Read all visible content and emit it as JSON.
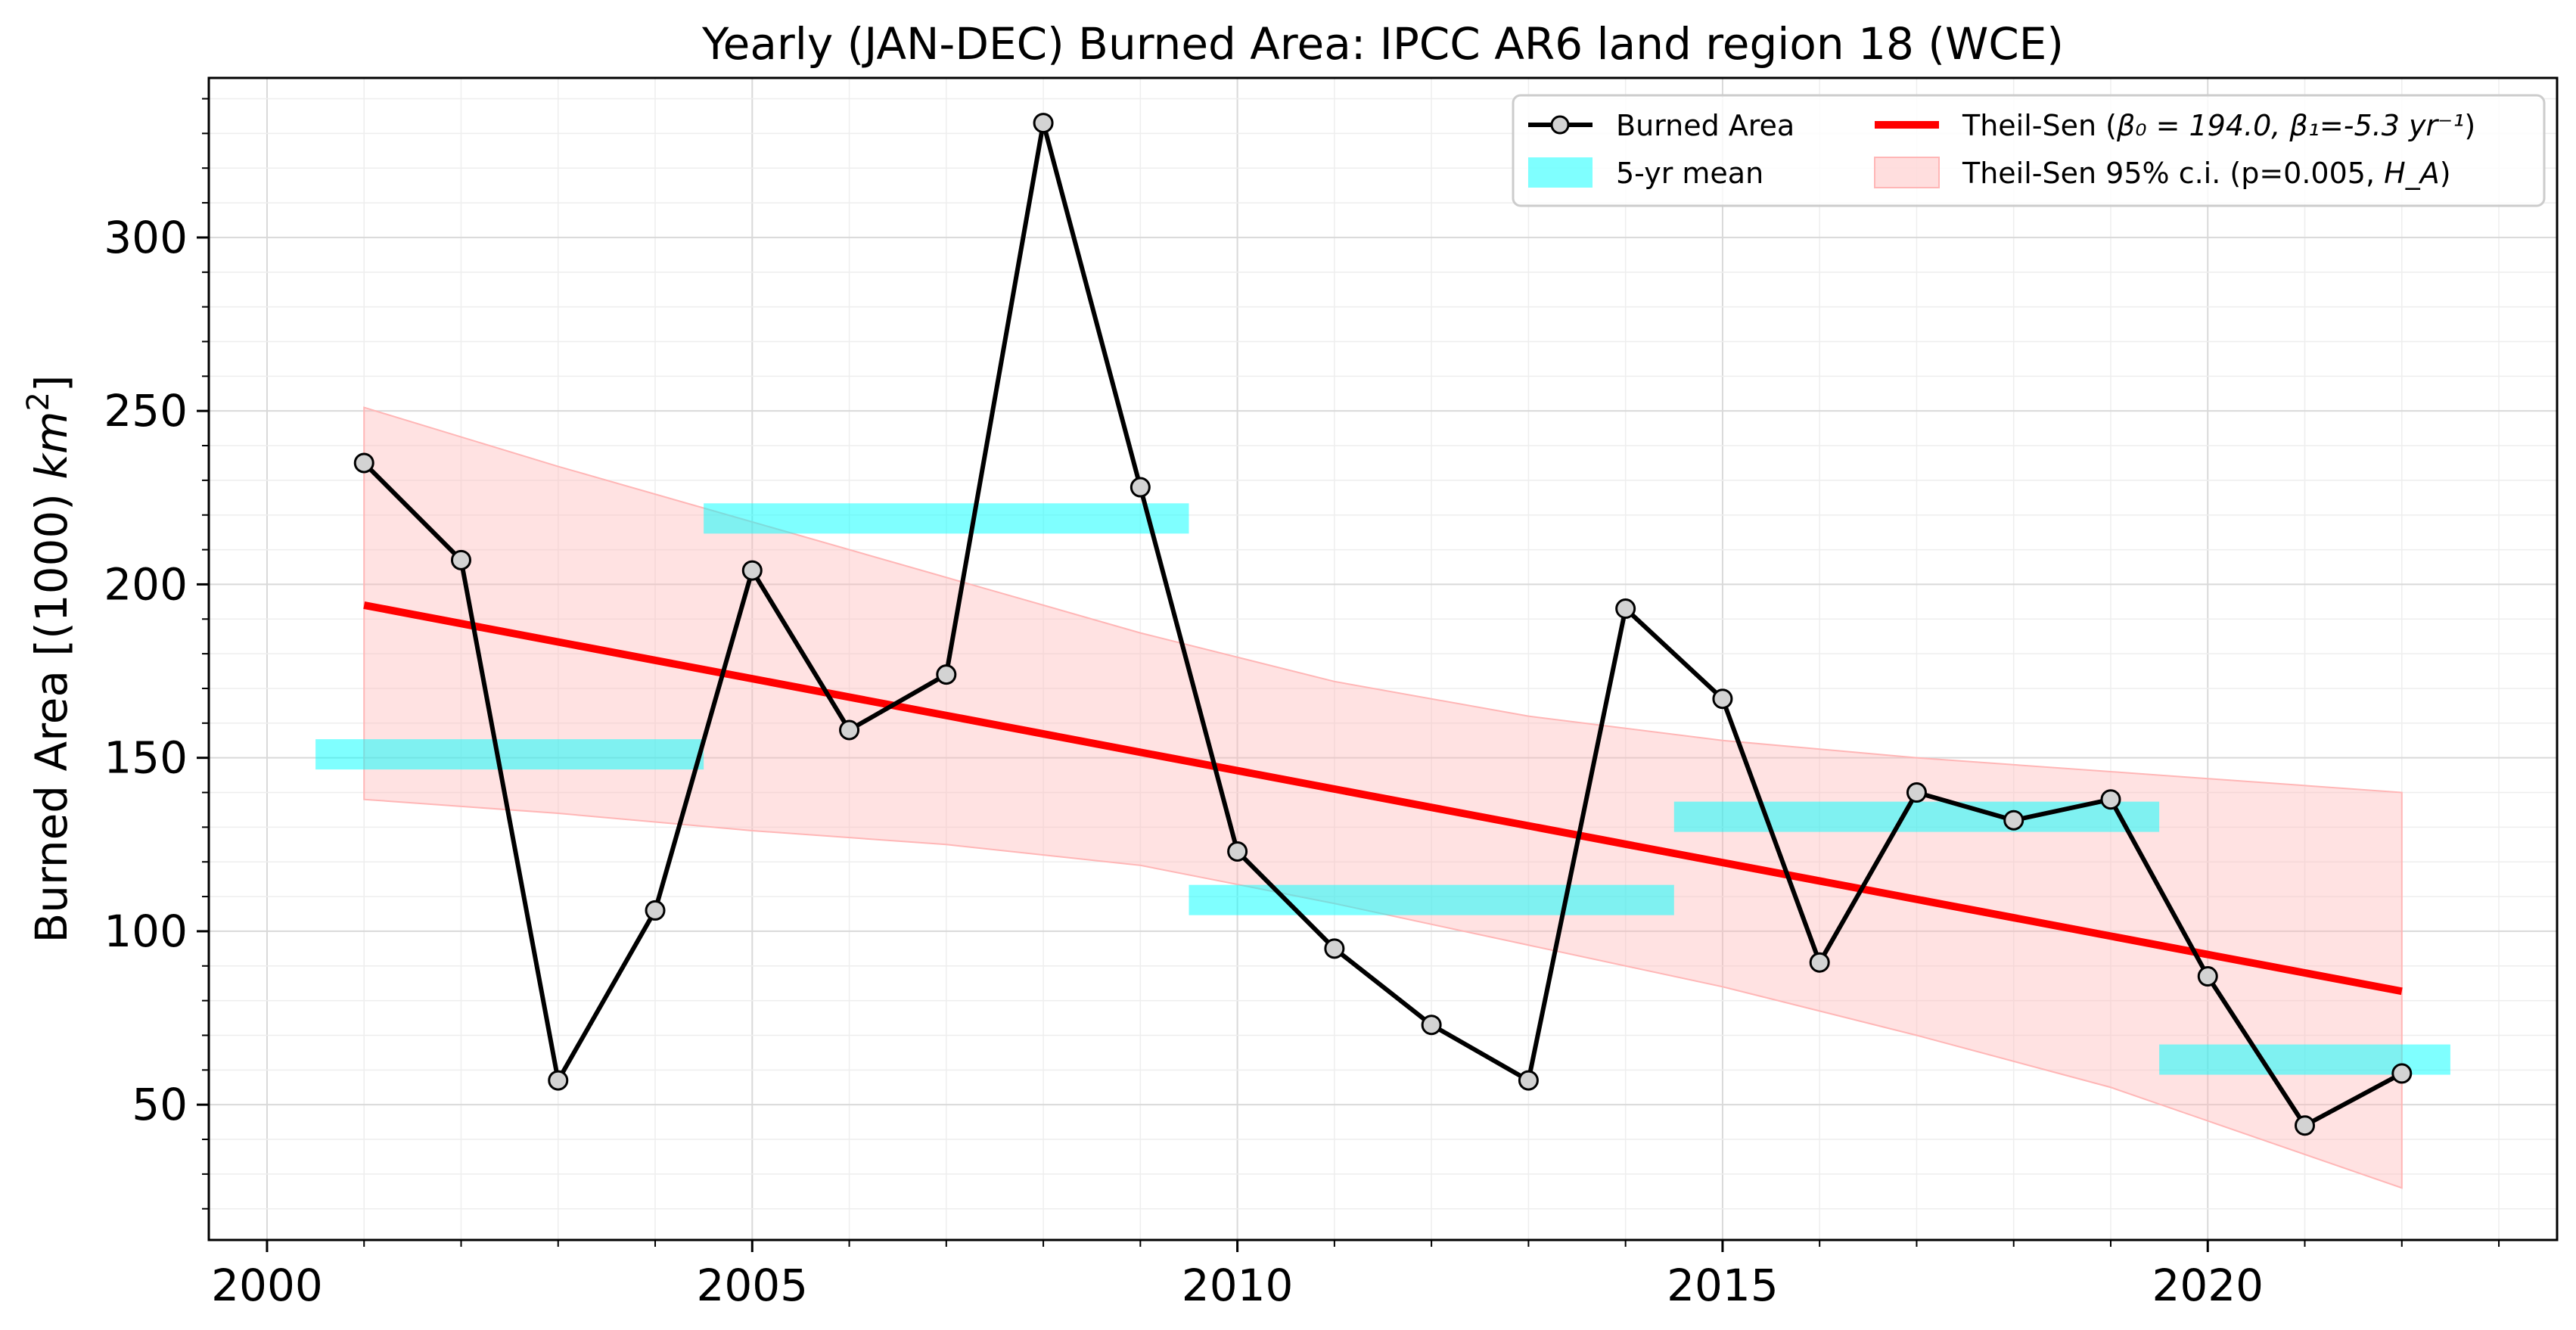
{
  "chart_data": {
    "type": "line",
    "title": "Yearly (JAN-DEC) Burned Area: IPCC AR6 land region 18 (WCE)",
    "xlabel": "",
    "ylabel": "Burned Area [(1000) km²]",
    "xlim": [
      1999.4,
      2023.6
    ],
    "ylim": [
      11,
      346
    ],
    "xticks": [
      2000,
      2005,
      2010,
      2015,
      2020
    ],
    "yticks": [
      50,
      100,
      150,
      200,
      250,
      300
    ],
    "grid": true,
    "legend_position": "top-right",
    "series": [
      {
        "name": "Burned Area",
        "kind": "line-markers",
        "color": "#000000",
        "marker_fill": "#d3d3d3",
        "x": [
          2001,
          2002,
          2003,
          2004,
          2005,
          2006,
          2007,
          2008,
          2009,
          2010,
          2011,
          2012,
          2013,
          2014,
          2015,
          2016,
          2017,
          2018,
          2019,
          2020,
          2021,
          2022
        ],
        "y": [
          235,
          207,
          57,
          106,
          204,
          158,
          174,
          333,
          228,
          123,
          95,
          73,
          57,
          193,
          167,
          91,
          140,
          132,
          138,
          87,
          44,
          59
        ]
      },
      {
        "name": "5-yr mean",
        "kind": "horizontal-bands",
        "color": "#00ffff",
        "opacity": 0.5,
        "bands": [
          {
            "x_start": 2000.5,
            "x_end": 2004.5,
            "y": 151
          },
          {
            "x_start": 2004.5,
            "x_end": 2009.5,
            "y": 219
          },
          {
            "x_start": 2009.5,
            "x_end": 2014.5,
            "y": 109
          },
          {
            "x_start": 2014.5,
            "x_end": 2019.5,
            "y": 133
          },
          {
            "x_start": 2019.5,
            "x_end": 2022.5,
            "y": 63
          }
        ]
      },
      {
        "name": "Theil-Sen (β₀ = 194.0, β₁=-5.3 yr⁻¹)",
        "kind": "trend-line",
        "color": "#ff0000",
        "intercept": 194.0,
        "slope": -5.3,
        "x_origin": 2001,
        "x_start": 2001,
        "x_end": 2022
      },
      {
        "name": "Theil-Sen 95% c.i. (p=0.005, H_A)",
        "kind": "confidence-band",
        "color": "#ffb6b6",
        "opacity": 0.4,
        "x": [
          2001,
          2003,
          2005,
          2007,
          2009,
          2011,
          2013,
          2015,
          2017,
          2019,
          2022
        ],
        "upper": [
          251,
          234,
          218,
          202,
          186,
          172,
          162,
          155,
          150,
          146,
          140
        ],
        "lower": [
          138,
          134,
          129,
          125,
          119,
          108,
          96,
          84,
          70,
          55,
          26
        ]
      }
    ],
    "legend": [
      {
        "label": "Burned Area",
        "symbol": "line-marker"
      },
      {
        "label": "5-yr mean",
        "symbol": "patch-cyan"
      },
      {
        "label_prefix": "Theil-Sen (",
        "label_math": "β₀ = 194.0, β₁=-5.3 yr⁻¹",
        "label_suffix": ")",
        "symbol": "line-red"
      },
      {
        "label_prefix": "Theil-Sen 95% c.i. (p=0.005, ",
        "label_math": "H_A",
        "label_suffix": ")",
        "symbol": "patch-pink"
      }
    ]
  }
}
